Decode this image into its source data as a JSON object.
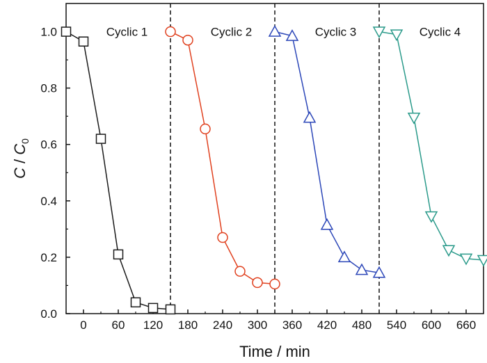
{
  "chart_data": {
    "type": "line",
    "title": "",
    "xlabel": "Time / min",
    "ylabel": {
      "main": "C",
      "slash": " / ",
      "base": "C",
      "sub": "0"
    },
    "xlim": [
      -30,
      690
    ],
    "ylim": [
      0,
      1.1
    ],
    "x_ticks": [
      0,
      60,
      120,
      180,
      240,
      300,
      360,
      420,
      480,
      540,
      600,
      660
    ],
    "x_tick_labels": [
      "0",
      "60",
      "120",
      "180",
      "240",
      "300",
      "360",
      "420",
      "480",
      "540",
      "600",
      "660"
    ],
    "y_ticks": [
      0.0,
      0.2,
      0.4,
      0.6,
      0.8,
      1.0
    ],
    "y_tick_labels": [
      "0.0",
      "0.2",
      "0.4",
      "0.6",
      "0.8",
      "1.0"
    ],
    "grid": false,
    "legend": "none",
    "dividers": [
      150,
      330,
      510
    ],
    "cycle_labels": [
      {
        "text": "Cyclic 1",
        "x": 75,
        "y": 1.0
      },
      {
        "text": "Cyclic 2",
        "x": 255,
        "y": 1.0
      },
      {
        "text": "Cyclic 3",
        "x": 435,
        "y": 1.0
      },
      {
        "text": "Cyclic 4",
        "x": 615,
        "y": 1.0
      }
    ],
    "series": [
      {
        "marker": "square",
        "color": "#1a1a1a",
        "x": [
          -30,
          0,
          30,
          60,
          90,
          120,
          150
        ],
        "y": [
          1.0,
          0.965,
          0.62,
          0.21,
          0.04,
          0.02,
          0.015
        ]
      },
      {
        "marker": "circle",
        "color": "#e0401e",
        "x": [
          150,
          180,
          210,
          240,
          270,
          300,
          330
        ],
        "y": [
          1.0,
          0.97,
          0.655,
          0.27,
          0.15,
          0.11,
          0.105
        ]
      },
      {
        "marker": "triangle-up",
        "color": "#2b46b8",
        "x": [
          330,
          360,
          390,
          420,
          450,
          480,
          510
        ],
        "y": [
          1.0,
          0.985,
          0.695,
          0.315,
          0.2,
          0.155,
          0.145
        ]
      },
      {
        "marker": "triangle-down",
        "color": "#2a9a8a",
        "x": [
          510,
          540,
          570,
          600,
          630,
          660,
          690
        ],
        "y": [
          1.0,
          0.99,
          0.695,
          0.345,
          0.225,
          0.195,
          0.19
        ]
      }
    ]
  }
}
